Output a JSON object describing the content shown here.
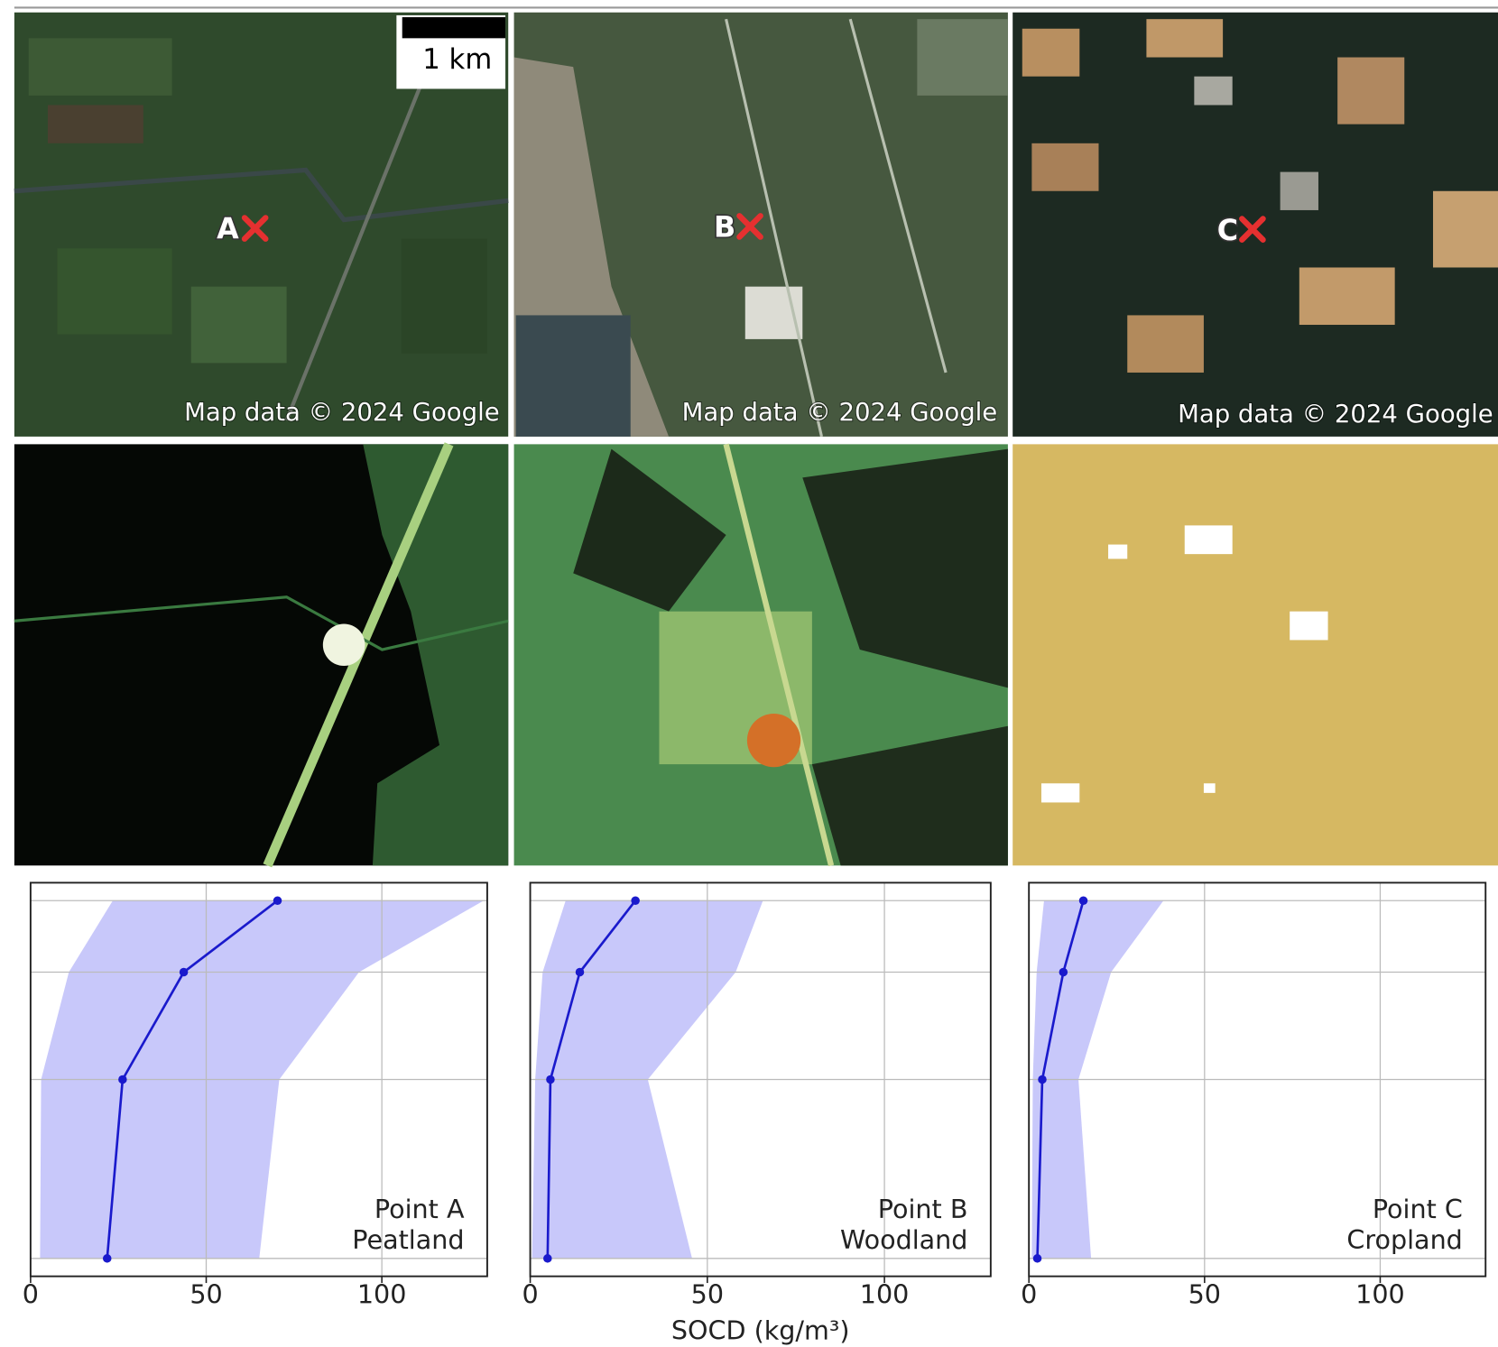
{
  "maps": {
    "scale_bar": "1 km",
    "attribution": [
      "Map data © 2024 Google",
      "Map data © 2024 Google",
      "Map data © 2024 Google"
    ],
    "points": [
      "A",
      "B",
      "C"
    ]
  },
  "chart_data": [
    {
      "type": "line",
      "annotation": [
        "Point A",
        "Peatland"
      ],
      "y": [
        0,
        20,
        50,
        100
      ],
      "series": [
        {
          "values": [
            70.3,
            43.6,
            26.2,
            21.8
          ],
          "lower": [
            23.4,
            10.9,
            3,
            2.7
          ],
          "upper": [
            129,
            93.5,
            70.8,
            65.1
          ],
          "color": "#1a1acc",
          "band_color": "#c8c8fa"
        }
      ],
      "xlim": [
        0,
        130
      ],
      "xticks": [
        0,
        50,
        100
      ],
      "ylim": [
        -5,
        105
      ],
      "yticks": [
        0,
        20,
        50,
        100
      ],
      "grid": true
    },
    {
      "type": "line",
      "annotation": [
        "Point B",
        "Woodland"
      ],
      "xlabel": "SOCD (kg/m³)",
      "y": [
        0,
        20,
        50,
        100
      ],
      "series": [
        {
          "values": [
            29.7,
            14,
            5.7,
            4.9
          ],
          "lower": [
            10,
            3.5,
            1.4,
            0.5
          ],
          "upper": [
            65.7,
            58,
            33.2,
            45.7
          ],
          "color": "#1a1acc",
          "band_color": "#c8c8fa"
        }
      ],
      "xlim": [
        0,
        130
      ],
      "xticks": [
        0,
        50,
        100
      ],
      "ylim": [
        -5,
        105
      ],
      "yticks": [
        0,
        20,
        50,
        100
      ],
      "grid": true
    },
    {
      "type": "line",
      "annotation": [
        "Point C",
        "Cropland"
      ],
      "y": [
        0,
        20,
        50,
        100
      ],
      "series": [
        {
          "values": [
            15.5,
            9.8,
            3.8,
            2.4
          ],
          "lower": [
            4.3,
            2.2,
            1.1,
            0.8
          ],
          "upper": [
            38.3,
            23.4,
            14.1,
            17.7
          ],
          "color": "#1a1acc",
          "band_color": "#c8c8fa"
        }
      ],
      "xlim": [
        0,
        130
      ],
      "xticks": [
        0,
        50,
        100
      ],
      "ylim": [
        -5,
        105
      ],
      "yticks": [
        0,
        20,
        50,
        100
      ],
      "grid": true
    }
  ]
}
